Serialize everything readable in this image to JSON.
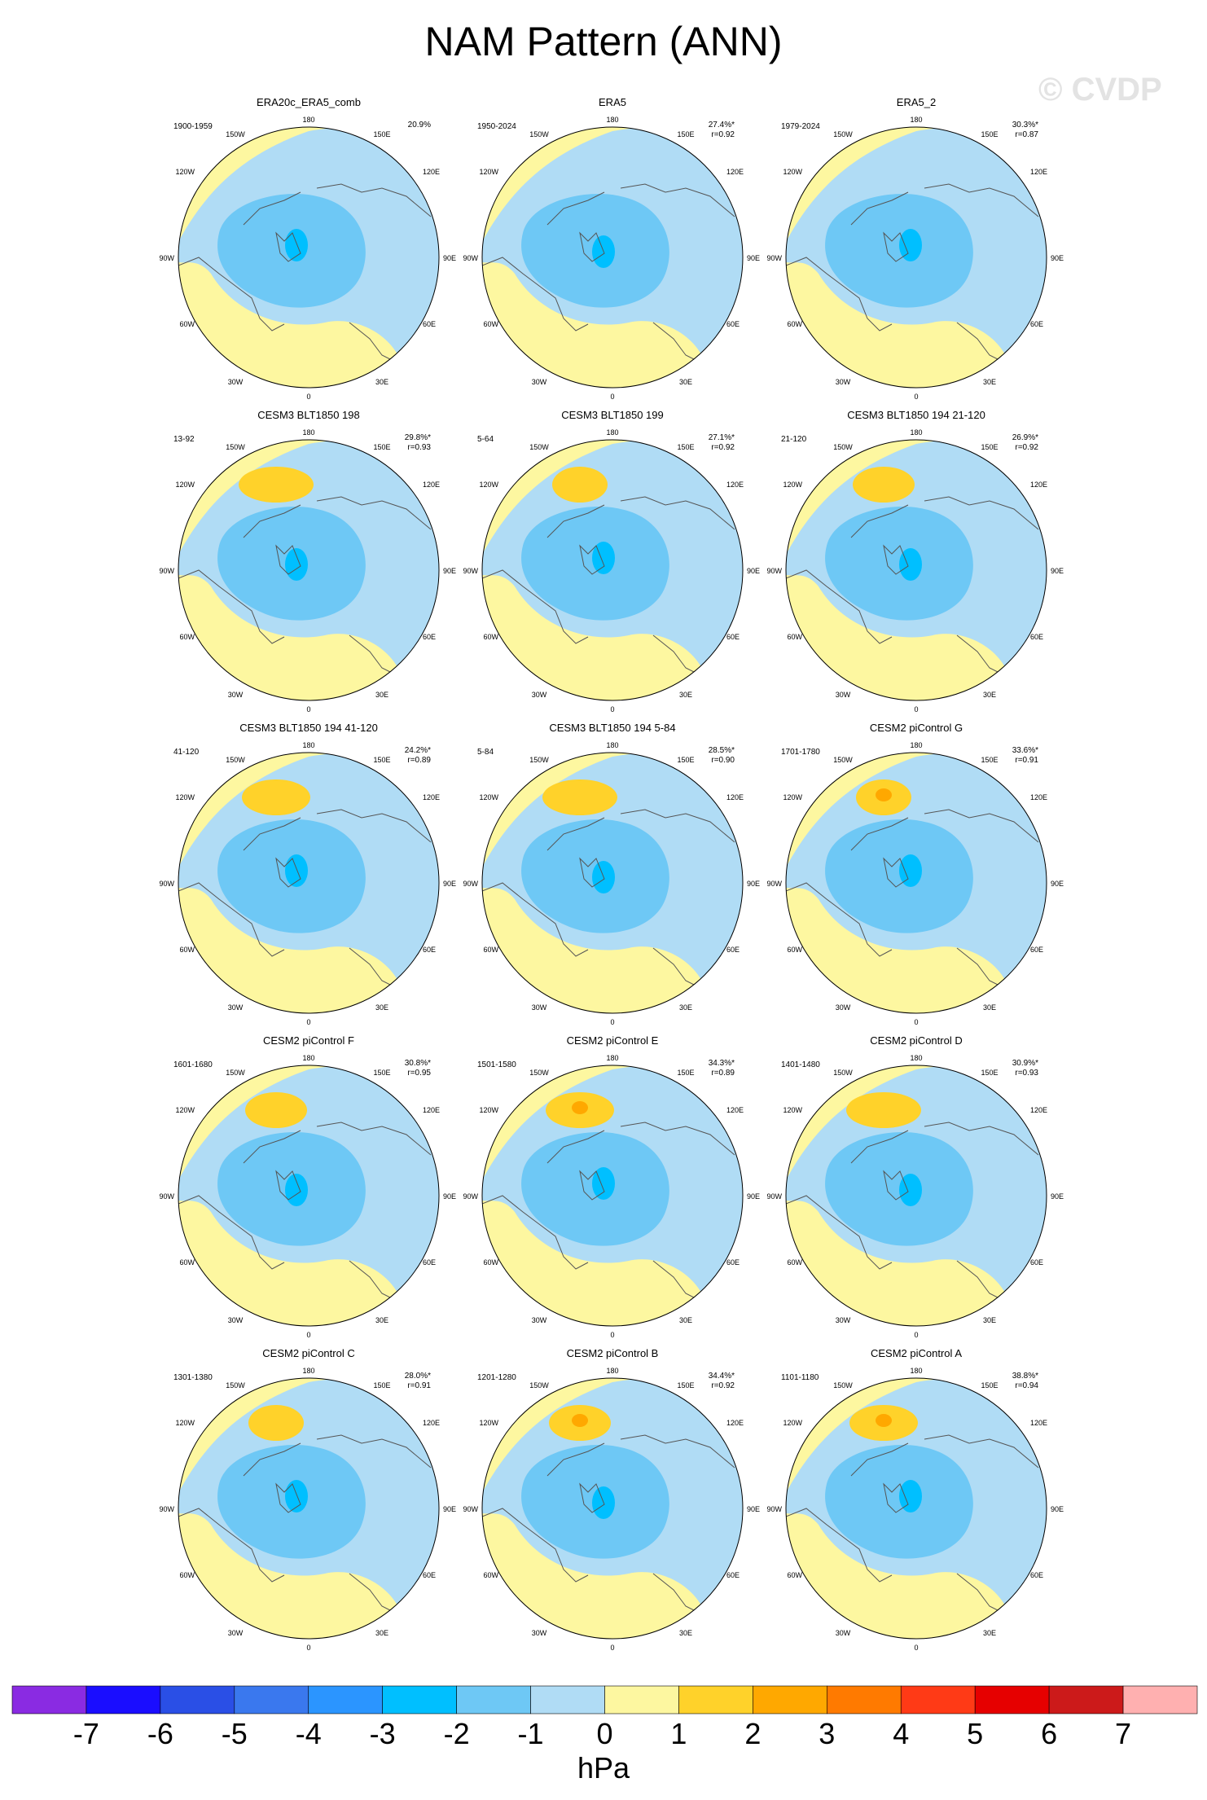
{
  "title": "NAM Pattern (ANN)",
  "watermark": "© CVDP",
  "lon_labels": {
    "top": "180",
    "top_left": "150W",
    "top_right": "150E",
    "upper_left": "120W",
    "upper_right": "120E",
    "left": "90W",
    "right": "90E",
    "lower_left": "60W",
    "lower_right": "60E",
    "bottom_left": "30W",
    "bottom_right": "30E",
    "bottom": "0"
  },
  "panels": [
    {
      "title": "ERA20c_ERA5_comb",
      "period": "1900-1959",
      "pct": "20.9%",
      "r": ""
    },
    {
      "title": "ERA5",
      "period": "1950-2024",
      "pct": "27.4%*",
      "r": "r=0.92"
    },
    {
      "title": "ERA5_2",
      "period": "1979-2024",
      "pct": "30.3%*",
      "r": "r=0.87"
    },
    {
      "title": "CESM3 BLT1850 198",
      "period": "13-92",
      "pct": "29.8%*",
      "r": "r=0.93"
    },
    {
      "title": "CESM3 BLT1850 199",
      "period": "5-64",
      "pct": "27.1%*",
      "r": "r=0.92"
    },
    {
      "title": "CESM3 BLT1850 194 21-120",
      "period": "21-120",
      "pct": "26.9%*",
      "r": "r=0.92"
    },
    {
      "title": "CESM3 BLT1850 194 41-120",
      "period": "41-120",
      "pct": "24.2%*",
      "r": "r=0.89"
    },
    {
      "title": "CESM3 BLT1850 194 5-84",
      "period": "5-84",
      "pct": "28.5%*",
      "r": "r=0.90"
    },
    {
      "title": "CESM2 piControl G",
      "period": "1701-1780",
      "pct": "33.6%*",
      "r": "r=0.91"
    },
    {
      "title": "CESM2 piControl F",
      "period": "1601-1680",
      "pct": "30.8%*",
      "r": "r=0.95"
    },
    {
      "title": "CESM2 piControl E",
      "period": "1501-1580",
      "pct": "34.3%*",
      "r": "r=0.89"
    },
    {
      "title": "CESM2 piControl D",
      "period": "1401-1480",
      "pct": "30.9%*",
      "r": "r=0.93"
    },
    {
      "title": "CESM2 piControl C",
      "period": "1301-1380",
      "pct": "28.0%*",
      "r": "r=0.91"
    },
    {
      "title": "CESM2 piControl B",
      "period": "1201-1280",
      "pct": "34.4%*",
      "r": "r=0.92"
    },
    {
      "title": "CESM2 piControl A",
      "period": "1101-1180",
      "pct": "38.8%*",
      "r": "r=0.94"
    }
  ],
  "colorbar": {
    "colors": [
      "#8a2be2",
      "#1a0dff",
      "#2a4fe6",
      "#3a78ee",
      "#2b95ff",
      "#00bfff",
      "#6ec8f5",
      "#b0dcf5",
      "#fdf7a0",
      "#ffd22a",
      "#ffa800",
      "#ff7a00",
      "#ff3a16",
      "#e60000",
      "#cc1a1a",
      "#ffb0b0"
    ],
    "labels": [
      "-7",
      "-6",
      "-5",
      "-4",
      "-3",
      "-2",
      "-1",
      "0",
      "1",
      "2",
      "3",
      "4",
      "5",
      "6",
      "7"
    ],
    "units": "hPa"
  },
  "field_colors": {
    "pos1": "#fdf7a0",
    "pos2": "#ffd22a",
    "pos3": "#ffa800",
    "neg1": "#b0dcf5",
    "neg2": "#6ec8f5",
    "neg3": "#00bfff",
    "coast": "#555555"
  }
}
